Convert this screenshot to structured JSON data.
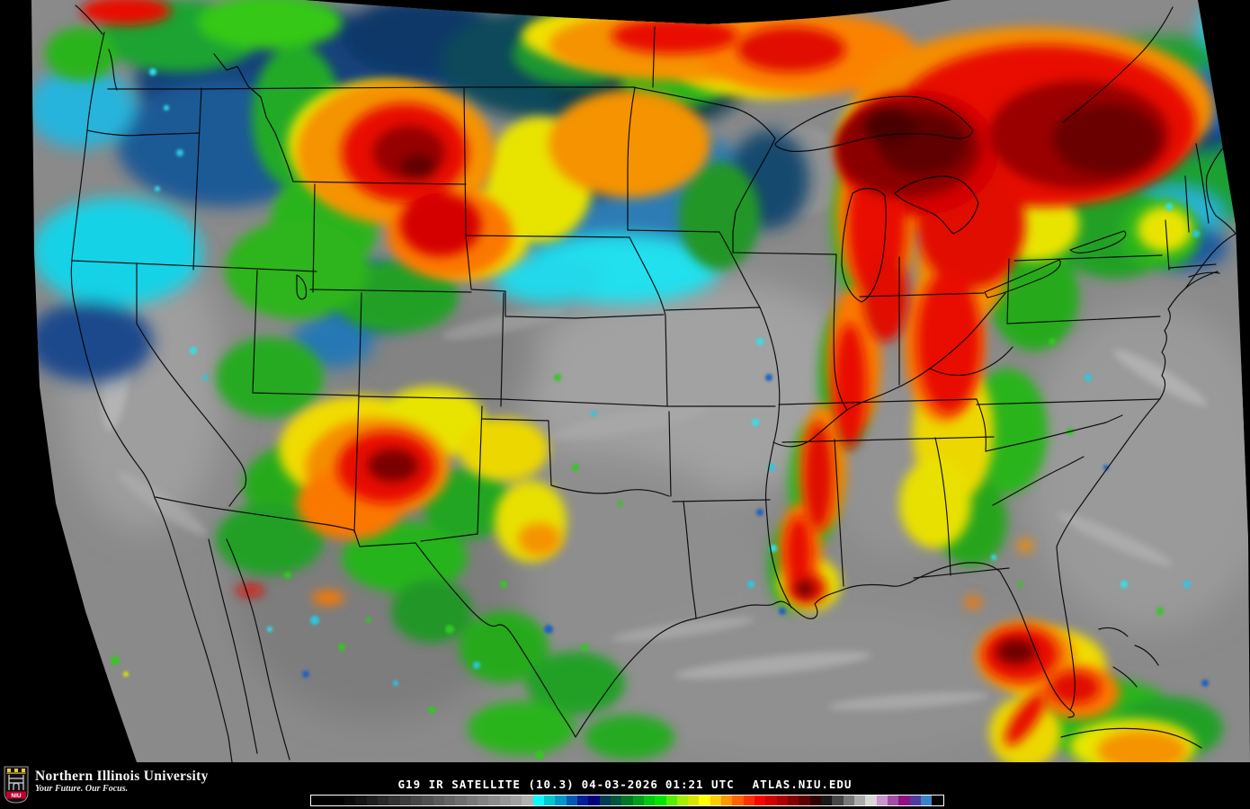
{
  "branding": {
    "org": "Northern Illinois University",
    "tagline": "Your Future. Our Focus.",
    "monogram": "NIU"
  },
  "caption": {
    "title": "G19 IR SATELLITE (10.3)",
    "date": "04-03-2026",
    "time": "01:21 UTC",
    "site": "ATLAS.NIU.EDU",
    "text_color": "#ffffff"
  },
  "colorbar": {
    "border_color": "#ffffff",
    "segments": [
      "#000000",
      "#000000",
      "#000000",
      "#0a0a0a",
      "#141414",
      "#1e1e1e",
      "#282828",
      "#323232",
      "#3c3c3c",
      "#464646",
      "#505050",
      "#5a5a5a",
      "#646464",
      "#6e6e6e",
      "#787878",
      "#828282",
      "#8c8c8c",
      "#969696",
      "#a0a0a0",
      "#b0b0b0",
      "#00ffff",
      "#00c8d2",
      "#0096c8",
      "#005ab4",
      "#001e96",
      "#000078",
      "#003c55",
      "#00553c",
      "#007828",
      "#00a01e",
      "#00c814",
      "#00e600",
      "#55f000",
      "#a0f000",
      "#d7e600",
      "#ffff00",
      "#ffcd00",
      "#ff9600",
      "#ff6400",
      "#ff3200",
      "#ff0000",
      "#d20000",
      "#aa0000",
      "#820000",
      "#5a0000",
      "#320000",
      "#181818",
      "#464646",
      "#787878",
      "#aaaaaa",
      "#d7d7d7",
      "#c896c8",
      "#a050a0",
      "#8c1482",
      "#503ca0",
      "#3c82c8",
      "#000000"
    ]
  }
}
